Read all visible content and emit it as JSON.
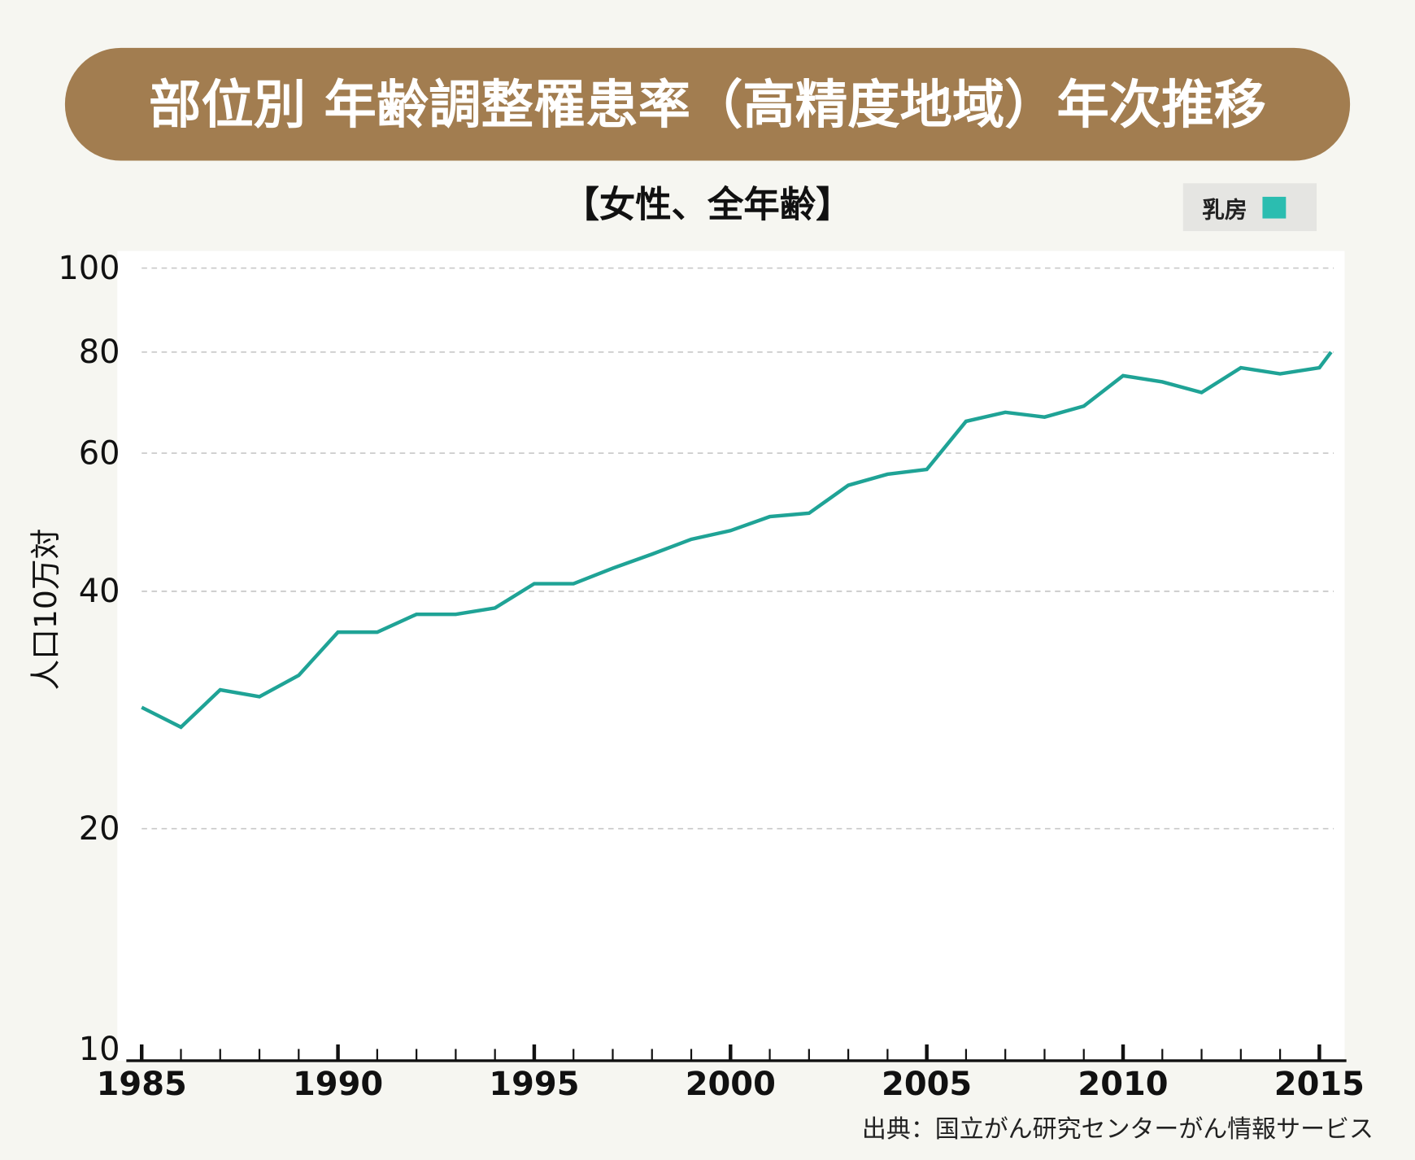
{
  "header": {
    "title": "部位別 年齢調整罹患率（高精度地域）年次推移"
  },
  "subtitle": "【女性、全年齢】",
  "legend": {
    "label": "乳房",
    "color": "#2bbdb0"
  },
  "source": "出典：国立がん研究センターがん情報サービス",
  "colors": {
    "title_bg": "#a27d50",
    "line": "#1fa396",
    "background": "#f6f6f1"
  },
  "chart_data": {
    "type": "line",
    "title": "部位別 年齢調整罹患率（高精度地域）年次推移",
    "subtitle": "【女性、全年齢】",
    "xlabel": "",
    "ylabel": "人口10万対",
    "yscale": "log",
    "ylim": [
      10,
      100
    ],
    "xlim": [
      1985,
      2015
    ],
    "yticks": [
      "10",
      "20",
      "40",
      "60",
      "80",
      "100"
    ],
    "xticks": [
      "1985",
      "1990",
      "1995",
      "2000",
      "2005",
      "2010",
      "2015"
    ],
    "grid": true,
    "legend_position": "top-right",
    "series": [
      {
        "name": "乳房",
        "x": [
          1985,
          1986,
          1987,
          1988,
          1989,
          1990,
          1991,
          1992,
          1993,
          1994,
          1995,
          1996,
          1997,
          1998,
          1999,
          2000,
          2001,
          2002,
          2003,
          2004,
          2005,
          2006,
          2007,
          2008,
          2009,
          2010,
          2011,
          2012,
          2013,
          2014,
          2015,
          2015.3
        ],
        "values": [
          28.5,
          26.9,
          30.0,
          29.4,
          31.3,
          35.5,
          35.5,
          37.4,
          37.4,
          38.1,
          40.9,
          40.9,
          42.8,
          44.6,
          46.6,
          47.8,
          49.8,
          50.3,
          54.6,
          56.4,
          57.2,
          65.7,
          67.4,
          66.5,
          68.6,
          74.8,
          73.5,
          71.3,
          76.5,
          75.2,
          76.5,
          80.0
        ]
      }
    ]
  }
}
